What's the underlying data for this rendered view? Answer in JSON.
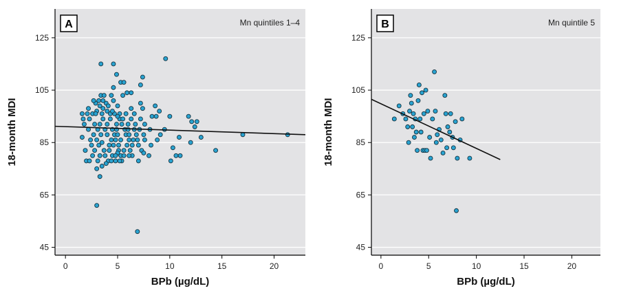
{
  "chart_data": [
    {
      "type": "scatter",
      "panel_letter": "A",
      "annotation": "Mn quintiles 1–4",
      "xlabel": "BPb (µg/dL)",
      "ylabel": "18-month MDI",
      "xlim": [
        -1,
        23
      ],
      "ylim": [
        42,
        136
      ],
      "xticks": [
        0,
        5,
        10,
        15,
        20
      ],
      "yticks": [
        45,
        65,
        85,
        105,
        125
      ],
      "grid": true,
      "point_color": "#29a3d1",
      "fit_line": {
        "x": [
          -1,
          23
        ],
        "y": [
          91.2,
          88.0
        ]
      },
      "points": [
        [
          1.6,
          96
        ],
        [
          1.7,
          94
        ],
        [
          1.8,
          92
        ],
        [
          1.6,
          87
        ],
        [
          1.9,
          82
        ],
        [
          2.0,
          78
        ],
        [
          2.3,
          78
        ],
        [
          2.1,
          96
        ],
        [
          2.2,
          90
        ],
        [
          2.4,
          86
        ],
        [
          2.5,
          84
        ],
        [
          2.3,
          94
        ],
        [
          2.6,
          80
        ],
        [
          2.7,
          88
        ],
        [
          2.8,
          92
        ],
        [
          2.6,
          96
        ],
        [
          2.9,
          100
        ],
        [
          2.8,
          82
        ],
        [
          3.0,
          86
        ],
        [
          3.1,
          90
        ],
        [
          3.0,
          97
        ],
        [
          2.7,
          101
        ],
        [
          3.2,
          84
        ],
        [
          3.3,
          80
        ],
        [
          3.1,
          78
        ],
        [
          3.4,
          88
        ],
        [
          3.3,
          92
        ],
        [
          3.5,
          96
        ],
        [
          3.2,
          101
        ],
        [
          3.4,
          103
        ],
        [
          3.6,
          98
        ],
        [
          3.5,
          85
        ],
        [
          3.7,
          82
        ],
        [
          3.8,
          90
        ],
        [
          3.6,
          94
        ],
        [
          3.9,
          100
        ],
        [
          3.7,
          103
        ],
        [
          4.0,
          88
        ],
        [
          3.8,
          80
        ],
        [
          4.1,
          78
        ],
        [
          4.2,
          84
        ],
        [
          4.0,
          92
        ],
        [
          4.3,
          96
        ],
        [
          4.1,
          99
        ],
        [
          4.4,
          86
        ],
        [
          4.2,
          82
        ],
        [
          4.5,
          90
        ],
        [
          4.3,
          94
        ],
        [
          4.6,
          101
        ],
        [
          4.4,
          103
        ],
        [
          4.7,
          88
        ],
        [
          4.5,
          80
        ],
        [
          4.8,
          78
        ],
        [
          4.6,
          84
        ],
        [
          4.9,
          92
        ],
        [
          4.7,
          96
        ],
        [
          5.0,
          99
        ],
        [
          4.8,
          86
        ],
        [
          5.1,
          82
        ],
        [
          4.9,
          90
        ],
        [
          5.2,
          94
        ],
        [
          5.0,
          88
        ],
        [
          5.3,
          80
        ],
        [
          5.1,
          84
        ],
        [
          5.4,
          92
        ],
        [
          5.2,
          96
        ],
        [
          5.5,
          103
        ],
        [
          5.3,
          86
        ],
        [
          5.6,
          82
        ],
        [
          5.4,
          78
        ],
        [
          5.7,
          90
        ],
        [
          5.5,
          94
        ],
        [
          5.8,
          88
        ],
        [
          5.6,
          80
        ],
        [
          5.9,
          84
        ],
        [
          6.0,
          92
        ],
        [
          5.8,
          96
        ],
        [
          6.1,
          86
        ],
        [
          6.2,
          82
        ],
        [
          6.0,
          90
        ],
        [
          6.3,
          94
        ],
        [
          6.1,
          88
        ],
        [
          6.4,
          80
        ],
        [
          6.5,
          86
        ],
        [
          6.3,
          98
        ],
        [
          6.6,
          90
        ],
        [
          6.4,
          84
        ],
        [
          6.7,
          92
        ],
        [
          6.8,
          88
        ],
        [
          6.6,
          96
        ],
        [
          6.9,
          86
        ],
        [
          7.0,
          78
        ],
        [
          7.1,
          90
        ],
        [
          7.2,
          94
        ],
        [
          7.0,
          84
        ],
        [
          7.3,
          82
        ],
        [
          7.4,
          98
        ],
        [
          7.2,
          100
        ],
        [
          7.5,
          88
        ],
        [
          7.6,
          92
        ],
        [
          2.2,
          98
        ],
        [
          2.9,
          96
        ],
        [
          3.3,
          99
        ],
        [
          3.6,
          101
        ],
        [
          4.0,
          97
        ],
        [
          4.5,
          97
        ],
        [
          5.0,
          95
        ],
        [
          3.4,
          115
        ],
        [
          4.6,
          115
        ],
        [
          4.9,
          111
        ],
        [
          5.3,
          108
        ],
        [
          5.6,
          108
        ],
        [
          5.9,
          104
        ],
        [
          6.3,
          104
        ],
        [
          4.6,
          106
        ],
        [
          7.2,
          107
        ],
        [
          7.4,
          110
        ],
        [
          5.0,
          81
        ],
        [
          3.0,
          75
        ],
        [
          3.3,
          72
        ],
        [
          3.5,
          76
        ],
        [
          3.9,
          77
        ],
        [
          4.4,
          78
        ],
        [
          4.8,
          80
        ],
        [
          5.2,
          78
        ],
        [
          6.1,
          80
        ],
        [
          8.0,
          80
        ],
        [
          7.5,
          81
        ],
        [
          7.6,
          86
        ],
        [
          8.1,
          90
        ],
        [
          8.3,
          95
        ],
        [
          8.6,
          99
        ],
        [
          8.8,
          86
        ],
        [
          9.1,
          88
        ],
        [
          9.5,
          90
        ],
        [
          8.2,
          84
        ],
        [
          8.7,
          95
        ],
        [
          9.0,
          97
        ],
        [
          10.0,
          95
        ],
        [
          10.1,
          78
        ],
        [
          10.3,
          83
        ],
        [
          10.6,
          80
        ],
        [
          10.9,
          87
        ],
        [
          11.0,
          80
        ],
        [
          9.6,
          117
        ],
        [
          11.8,
          95
        ],
        [
          12.0,
          85
        ],
        [
          12.1,
          93
        ],
        [
          12.4,
          91
        ],
        [
          12.6,
          93
        ],
        [
          13.0,
          87
        ],
        [
          14.4,
          82
        ],
        [
          17.0,
          88
        ],
        [
          21.3,
          88
        ],
        [
          3.0,
          61
        ],
        [
          6.9,
          51
        ]
      ]
    },
    {
      "type": "scatter",
      "panel_letter": "B",
      "annotation": "Mn quintile 5",
      "xlabel": "BPb (µg/dL)",
      "ylabel": "18-month MDI",
      "xlim": [
        -1,
        23
      ],
      "ylim": [
        42,
        136
      ],
      "xticks": [
        0,
        5,
        10,
        15,
        20
      ],
      "yticks": [
        45,
        65,
        85,
        105,
        125
      ],
      "grid": true,
      "point_color": "#29a3d1",
      "fit_line": {
        "x": [
          -1,
          12.5
        ],
        "y": [
          101.5,
          78.5
        ]
      },
      "points": [
        [
          1.4,
          94
        ],
        [
          1.9,
          99
        ],
        [
          2.3,
          96
        ],
        [
          2.6,
          94
        ],
        [
          2.8,
          91
        ],
        [
          2.9,
          85
        ],
        [
          3.0,
          97
        ],
        [
          3.1,
          103
        ],
        [
          3.2,
          100
        ],
        [
          3.3,
          91
        ],
        [
          3.4,
          96
        ],
        [
          3.5,
          87
        ],
        [
          3.6,
          94
        ],
        [
          3.7,
          89
        ],
        [
          3.8,
          82
        ],
        [
          3.9,
          101
        ],
        [
          4.0,
          107
        ],
        [
          4.1,
          94
        ],
        [
          4.2,
          89
        ],
        [
          4.3,
          104
        ],
        [
          4.4,
          82
        ],
        [
          4.5,
          96
        ],
        [
          4.6,
          82
        ],
        [
          4.7,
          105
        ],
        [
          4.8,
          82
        ],
        [
          4.9,
          97
        ],
        [
          5.1,
          87
        ],
        [
          5.2,
          79
        ],
        [
          5.4,
          94
        ],
        [
          5.6,
          112
        ],
        [
          5.7,
          97
        ],
        [
          5.8,
          85
        ],
        [
          5.9,
          88
        ],
        [
          6.1,
          90
        ],
        [
          6.3,
          86
        ],
        [
          6.5,
          81
        ],
        [
          6.7,
          103
        ],
        [
          6.8,
          96
        ],
        [
          6.9,
          83
        ],
        [
          7.0,
          91
        ],
        [
          7.2,
          89
        ],
        [
          7.3,
          96
        ],
        [
          7.5,
          87
        ],
        [
          7.6,
          83
        ],
        [
          7.8,
          93
        ],
        [
          8.0,
          79
        ],
        [
          8.3,
          86
        ],
        [
          8.5,
          94
        ],
        [
          9.3,
          79
        ],
        [
          7.9,
          59
        ]
      ]
    }
  ]
}
